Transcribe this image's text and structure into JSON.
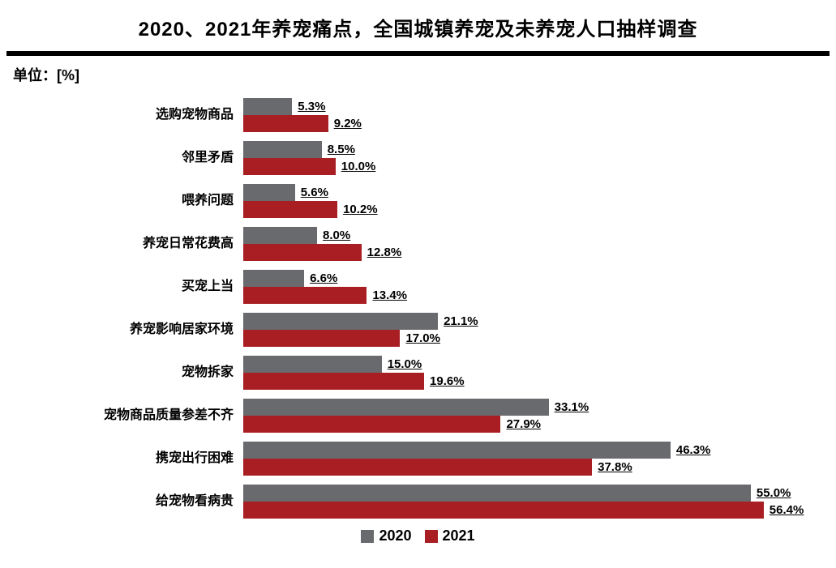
{
  "title": "2020、2021年养宠痛点，全国城镇养宠及未养宠人口抽样调查",
  "unit_label": "单位：[%]",
  "colors": {
    "bar_2020": "#696a6d",
    "bar_2021": "#a91e23",
    "title_rule": "#000000"
  },
  "legend": {
    "item_2020": "2020",
    "item_2021": "2021"
  },
  "chart_data": {
    "type": "bar",
    "orientation": "horizontal",
    "title": "2020、2021年养宠痛点，全国城镇养宠及未养宠人口抽样调查",
    "unit": "%",
    "value_suffix": "%",
    "xlim": [
      0,
      58
    ],
    "grid": false,
    "legend_position": "bottom-center",
    "categories": [
      "选购宠物商品",
      "邻里矛盾",
      "喂养问题",
      "养宠日常花费高",
      "买宠上当",
      "养宠影响居家环境",
      "宠物拆家",
      "宠物商品质量参差不齐",
      "携宠出行困难",
      "给宠物看病贵"
    ],
    "series": [
      {
        "name": "2020",
        "color": "#696a6d",
        "values": [
          5.3,
          8.5,
          5.6,
          8.0,
          6.6,
          21.1,
          15.0,
          33.1,
          46.3,
          55.0
        ]
      },
      {
        "name": "2021",
        "color": "#a91e23",
        "values": [
          9.2,
          10.0,
          10.2,
          12.8,
          13.4,
          17.0,
          19.6,
          27.9,
          37.8,
          56.4
        ]
      }
    ]
  }
}
